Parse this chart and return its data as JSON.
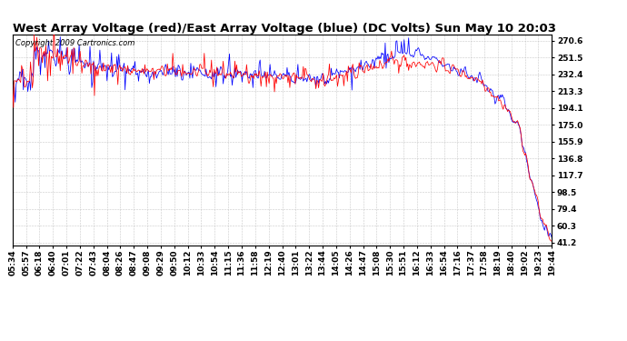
{
  "title": "West Array Voltage (red)/East Array Voltage (blue) (DC Volts) Sun May 10 20:03",
  "copyright": "Copyright 2009 Cartronics.com",
  "yticks": [
    41.2,
    60.3,
    79.4,
    98.5,
    117.7,
    136.8,
    155.9,
    175.0,
    194.1,
    213.3,
    232.4,
    251.5,
    270.6
  ],
  "ymin": 38.0,
  "ymax": 278.0,
  "background_color": "#ffffff",
  "grid_color": "#bbbbbb",
  "red_color": "#ff0000",
  "blue_color": "#0000ff",
  "title_fontsize": 9.5,
  "tick_fontsize": 6.5,
  "copyright_fontsize": 6.0,
  "x_tick_labels": [
    "05:34",
    "05:57",
    "06:18",
    "06:40",
    "07:01",
    "07:22",
    "07:43",
    "08:04",
    "08:26",
    "08:47",
    "09:08",
    "09:29",
    "09:50",
    "10:12",
    "10:33",
    "10:54",
    "11:15",
    "11:36",
    "11:58",
    "12:19",
    "12:40",
    "13:01",
    "13:22",
    "13:44",
    "14:05",
    "14:26",
    "14:47",
    "15:08",
    "15:30",
    "15:51",
    "16:12",
    "16:33",
    "16:54",
    "17:16",
    "17:37",
    "17:58",
    "18:19",
    "18:40",
    "19:02",
    "19:23",
    "19:44"
  ],
  "num_points": 600
}
